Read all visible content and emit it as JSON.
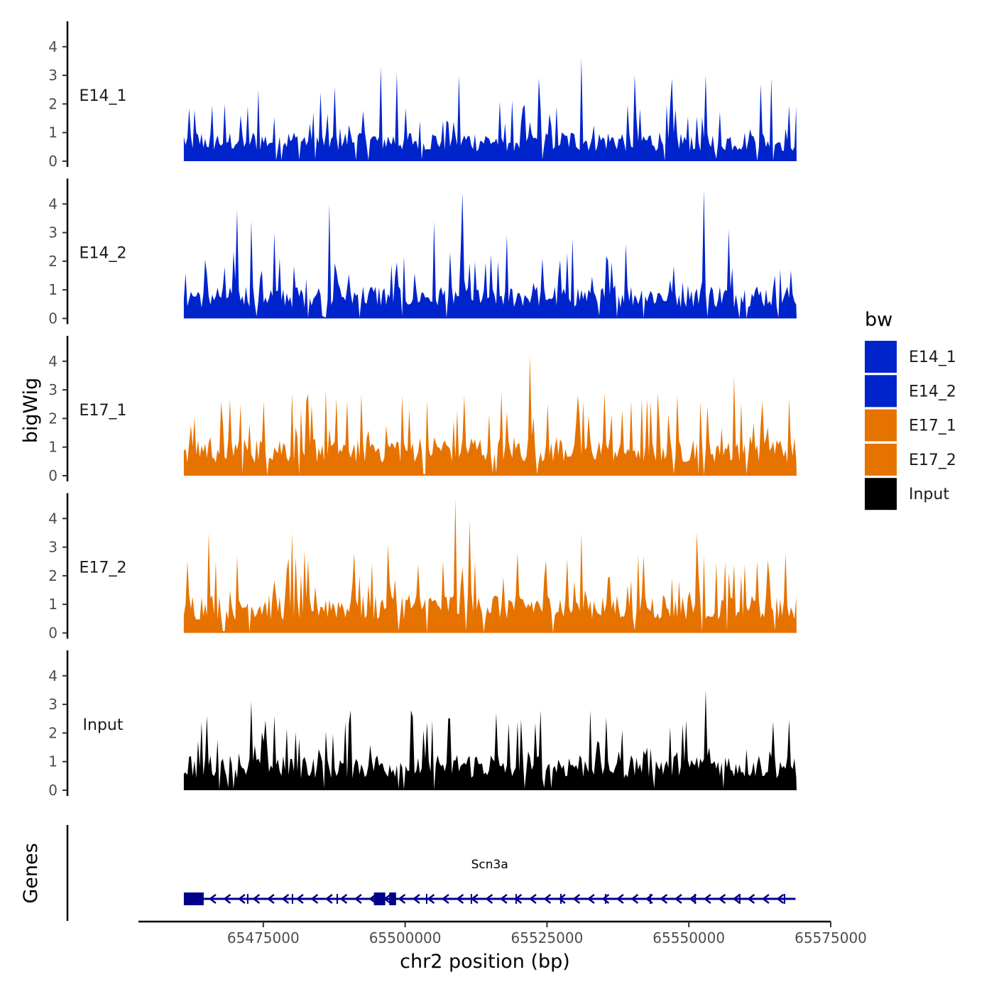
{
  "chart_data": {
    "type": "area",
    "chromosome": "chr2",
    "xlabel": "chr2 position (bp)",
    "ylabel": "bigWig",
    "genes_label": "Genes",
    "xlim": [
      65453000,
      65575000
    ],
    "region": [
      65461000,
      65569000
    ],
    "ylim": [
      0,
      4.7
    ],
    "x_ticks": [
      65475000,
      65500000,
      65525000,
      65550000,
      65575000
    ],
    "x_tick_labels": [
      "65475000",
      "65500000",
      "65525000",
      "65550000",
      "65575000"
    ],
    "y_ticks": [
      0,
      1,
      2,
      3,
      4
    ],
    "y_tick_labels": [
      "0",
      "1",
      "2",
      "3",
      "4"
    ],
    "legend": {
      "title": "bw",
      "entries": [
        {
          "label": "E14_1",
          "color": "#0024CC"
        },
        {
          "label": "E14_2",
          "color": "#0024CC"
        },
        {
          "label": "E17_1",
          "color": "#E67300"
        },
        {
          "label": "E17_2",
          "color": "#E67300"
        },
        {
          "label": "Input",
          "color": "#000000"
        }
      ]
    },
    "series": [
      {
        "name": "E14_1",
        "color": "#0024CC",
        "max": 3.6,
        "base": 0.9,
        "peaks": [
          [
            65474000,
            2.5
          ],
          [
            65485000,
            2.4
          ],
          [
            65487500,
            2.6
          ],
          [
            65495700,
            3.3
          ],
          [
            65498500,
            3.1
          ],
          [
            65509500,
            3.0
          ],
          [
            65523500,
            2.9
          ],
          [
            65531000,
            3.6
          ],
          [
            65540500,
            3.0
          ],
          [
            65547000,
            2.9
          ],
          [
            65553000,
            3.0
          ],
          [
            65562800,
            2.7
          ],
          [
            65564500,
            2.9
          ]
        ]
      },
      {
        "name": "E14_2",
        "color": "#0024CC",
        "max": 4.5,
        "base": 1.0,
        "peaks": [
          [
            65470500,
            3.8
          ],
          [
            65473000,
            3.4
          ],
          [
            65477000,
            3.0
          ],
          [
            65486500,
            4.0
          ],
          [
            65505000,
            3.4
          ],
          [
            65510000,
            4.4
          ],
          [
            65518000,
            2.9
          ],
          [
            65529500,
            2.8
          ],
          [
            65539000,
            2.6
          ],
          [
            65552700,
            4.5
          ],
          [
            65557000,
            3.1
          ]
        ]
      },
      {
        "name": "E17_1",
        "color": "#E67300",
        "max": 4.2,
        "base": 1.2,
        "peaks": [
          [
            65471000,
            2.5
          ],
          [
            65475000,
            2.6
          ],
          [
            65480000,
            2.9
          ],
          [
            65486000,
            3.0
          ],
          [
            65499500,
            2.8
          ],
          [
            65510500,
            2.8
          ],
          [
            65517000,
            2.9
          ],
          [
            65522000,
            4.2
          ],
          [
            65531500,
            2.6
          ],
          [
            65535000,
            2.9
          ],
          [
            65544500,
            2.9
          ],
          [
            65558000,
            3.5
          ],
          [
            65563000,
            2.6
          ]
        ]
      },
      {
        "name": "E17_2",
        "color": "#E67300",
        "max": 4.7,
        "base": 1.2,
        "peaks": [
          [
            65465500,
            3.5
          ],
          [
            65480000,
            3.5
          ],
          [
            65491000,
            2.8
          ],
          [
            65497000,
            3.1
          ],
          [
            65509000,
            4.7
          ],
          [
            65511500,
            3.9
          ],
          [
            65528500,
            2.6
          ],
          [
            65531000,
            3.5
          ],
          [
            65542000,
            2.7
          ],
          [
            65551500,
            3.5
          ],
          [
            65562000,
            2.5
          ]
        ]
      },
      {
        "name": "Input",
        "color": "#000000",
        "max": 3.6,
        "base": 1.1,
        "peaks": [
          [
            65465000,
            2.6
          ],
          [
            65473000,
            3.1
          ],
          [
            65477000,
            2.6
          ],
          [
            65490500,
            2.8
          ],
          [
            65501000,
            2.8
          ],
          [
            65508000,
            2.5
          ],
          [
            65516000,
            2.7
          ],
          [
            65524000,
            2.8
          ],
          [
            65532500,
            2.8
          ],
          [
            65549000,
            2.3
          ],
          [
            65553000,
            3.5
          ],
          [
            65565000,
            2.4
          ]
        ]
      }
    ],
    "genes": [
      {
        "name": "Scn3a",
        "start": 65461000,
        "end": 65568800,
        "strand": "-",
        "color": "#00008B",
        "exons": [
          [
            65461000,
            65464500
          ],
          [
            65494500,
            65496500
          ],
          [
            65497200,
            65498400
          ]
        ]
      }
    ]
  }
}
